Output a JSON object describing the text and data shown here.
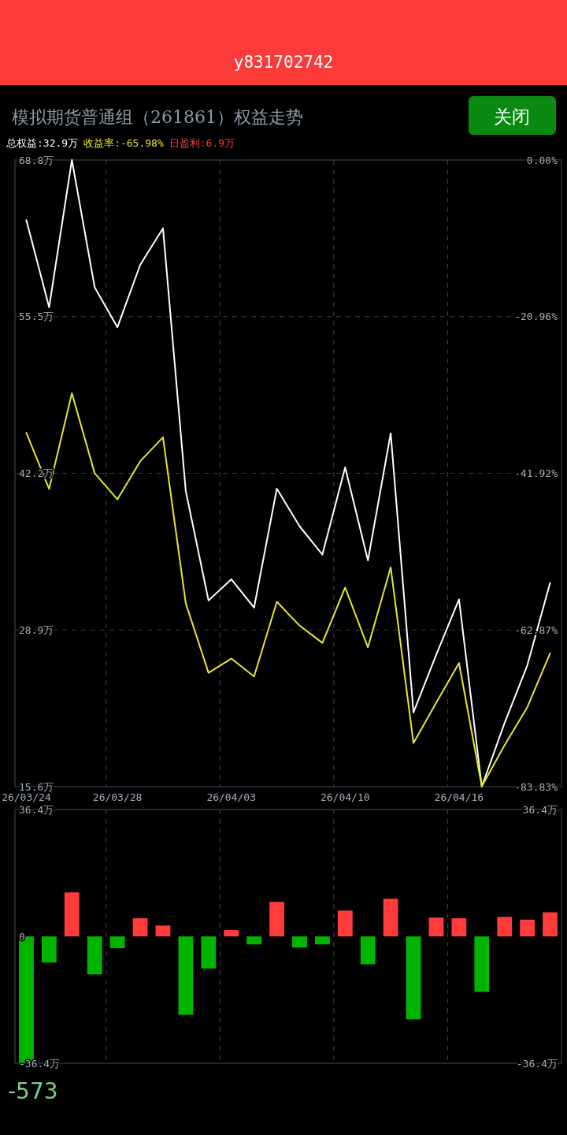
{
  "chart_data": [
    {
      "type": "line",
      "title": "模拟期货普通组（261861）权益走势",
      "categories": [
        "26/03/24",
        null,
        null,
        null,
        "26/03/28",
        null,
        null,
        null,
        null,
        "26/04/03",
        null,
        null,
        null,
        null,
        "26/04/10",
        null,
        null,
        null,
        null,
        "26/04/16",
        null,
        null,
        null,
        null
      ],
      "ylim": [
        15.6,
        68.8
      ],
      "yticks": [
        {
          "value": 15.6,
          "label": "15.6万"
        },
        {
          "value": 28.9,
          "label": "28.9万"
        },
        {
          "value": 42.2,
          "label": "42.2万"
        },
        {
          "value": 55.5,
          "label": "55.5万"
        },
        {
          "value": 68.8,
          "label": "68.8万"
        }
      ],
      "y2lim": [
        -83.83,
        0
      ],
      "y2ticks": [
        {
          "value": -83.83,
          "label": "-83.83%"
        },
        {
          "value": -62.87,
          "label": "-62.87%"
        },
        {
          "value": -41.92,
          "label": "-41.92%"
        },
        {
          "value": -20.96,
          "label": "-20.96%"
        },
        {
          "value": 0,
          "label": "0.00%"
        }
      ],
      "series": [
        {
          "name": "总权益:32.9万",
          "color": "#ffffff",
          "values": [
            63.7,
            56.3,
            68.8,
            58.0,
            54.6,
            59.9,
            63.0,
            40.7,
            31.4,
            33.2,
            30.8,
            40.9,
            37.7,
            35.3,
            42.7,
            34.8,
            45.6,
            21.9,
            26.8,
            31.5,
            15.6,
            21.0,
            25.9,
            32.9
          ]
        },
        {
          "name": "收益率:-65.98%",
          "color": "#e6e632",
          "axis": "y2",
          "values": [
            -36.5,
            -44.0,
            -31.2,
            -41.9,
            -45.4,
            -40.3,
            -37.1,
            -59.3,
            -68.6,
            -66.7,
            -69.1,
            -59.1,
            -62.3,
            -64.6,
            -57.2,
            -65.2,
            -54.5,
            -78.0,
            -72.6,
            -67.3,
            -83.8,
            -78.3,
            -73.2,
            -66.0
          ]
        }
      ],
      "grid": true,
      "legend": "top left",
      "marker": "none",
      "annotations": [
        "y831702742",
        "关闭"
      ]
    },
    {
      "type": "bar",
      "categories": [
        null,
        null,
        null,
        null,
        null,
        null,
        null,
        null,
        null,
        null,
        null,
        null,
        null,
        null,
        null,
        null,
        null,
        null,
        null,
        null,
        null,
        null,
        null,
        null
      ],
      "ylim": [
        -36.4,
        36.4
      ],
      "yticks": [
        {
          "value": -36.4,
          "label": "-36.4万"
        },
        {
          "value": 0,
          "label": "0"
        },
        {
          "value": 36.4,
          "label": "36.4万"
        }
      ],
      "y2lim": [
        -36.4,
        36.4
      ],
      "y2ticks": [
        {
          "value": -36.4,
          "label": "-36.4万"
        },
        {
          "value": 36.4,
          "label": "36.4万"
        }
      ],
      "series": [
        {
          "name": "日盈利:6.9万",
          "color": "#ff3b3b",
          "colors": [
            "#00b400",
            "#00b400",
            "#ff3b3b",
            "#00b400",
            "#00b400",
            "#ff3b3b",
            "#ff3b3b",
            "#00b400",
            "#00b400",
            "#ff3b3b",
            "#00b400",
            "#ff3b3b",
            "#00b400",
            "#00b400",
            "#ff3b3b",
            "#00b400",
            "#ff3b3b",
            "#00b400",
            "#ff3b3b",
            "#ff3b3b",
            "#00b400",
            "#ff3b3b",
            "#ff3b3b",
            "#ff3b3b"
          ],
          "values": [
            -36.4,
            -7.5,
            12.6,
            -10.9,
            -3.4,
            5.2,
            3.1,
            -22.5,
            -9.2,
            1.8,
            -2.3,
            9.9,
            -3.2,
            -2.3,
            7.4,
            -8.0,
            10.8,
            -23.8,
            5.4,
            5.2,
            -15.9,
            5.6,
            4.8,
            6.9
          ]
        }
      ],
      "grid": "x",
      "legend": "top left",
      "tick_labels": "y",
      "annotations": [
        "-573"
      ]
    }
  ]
}
